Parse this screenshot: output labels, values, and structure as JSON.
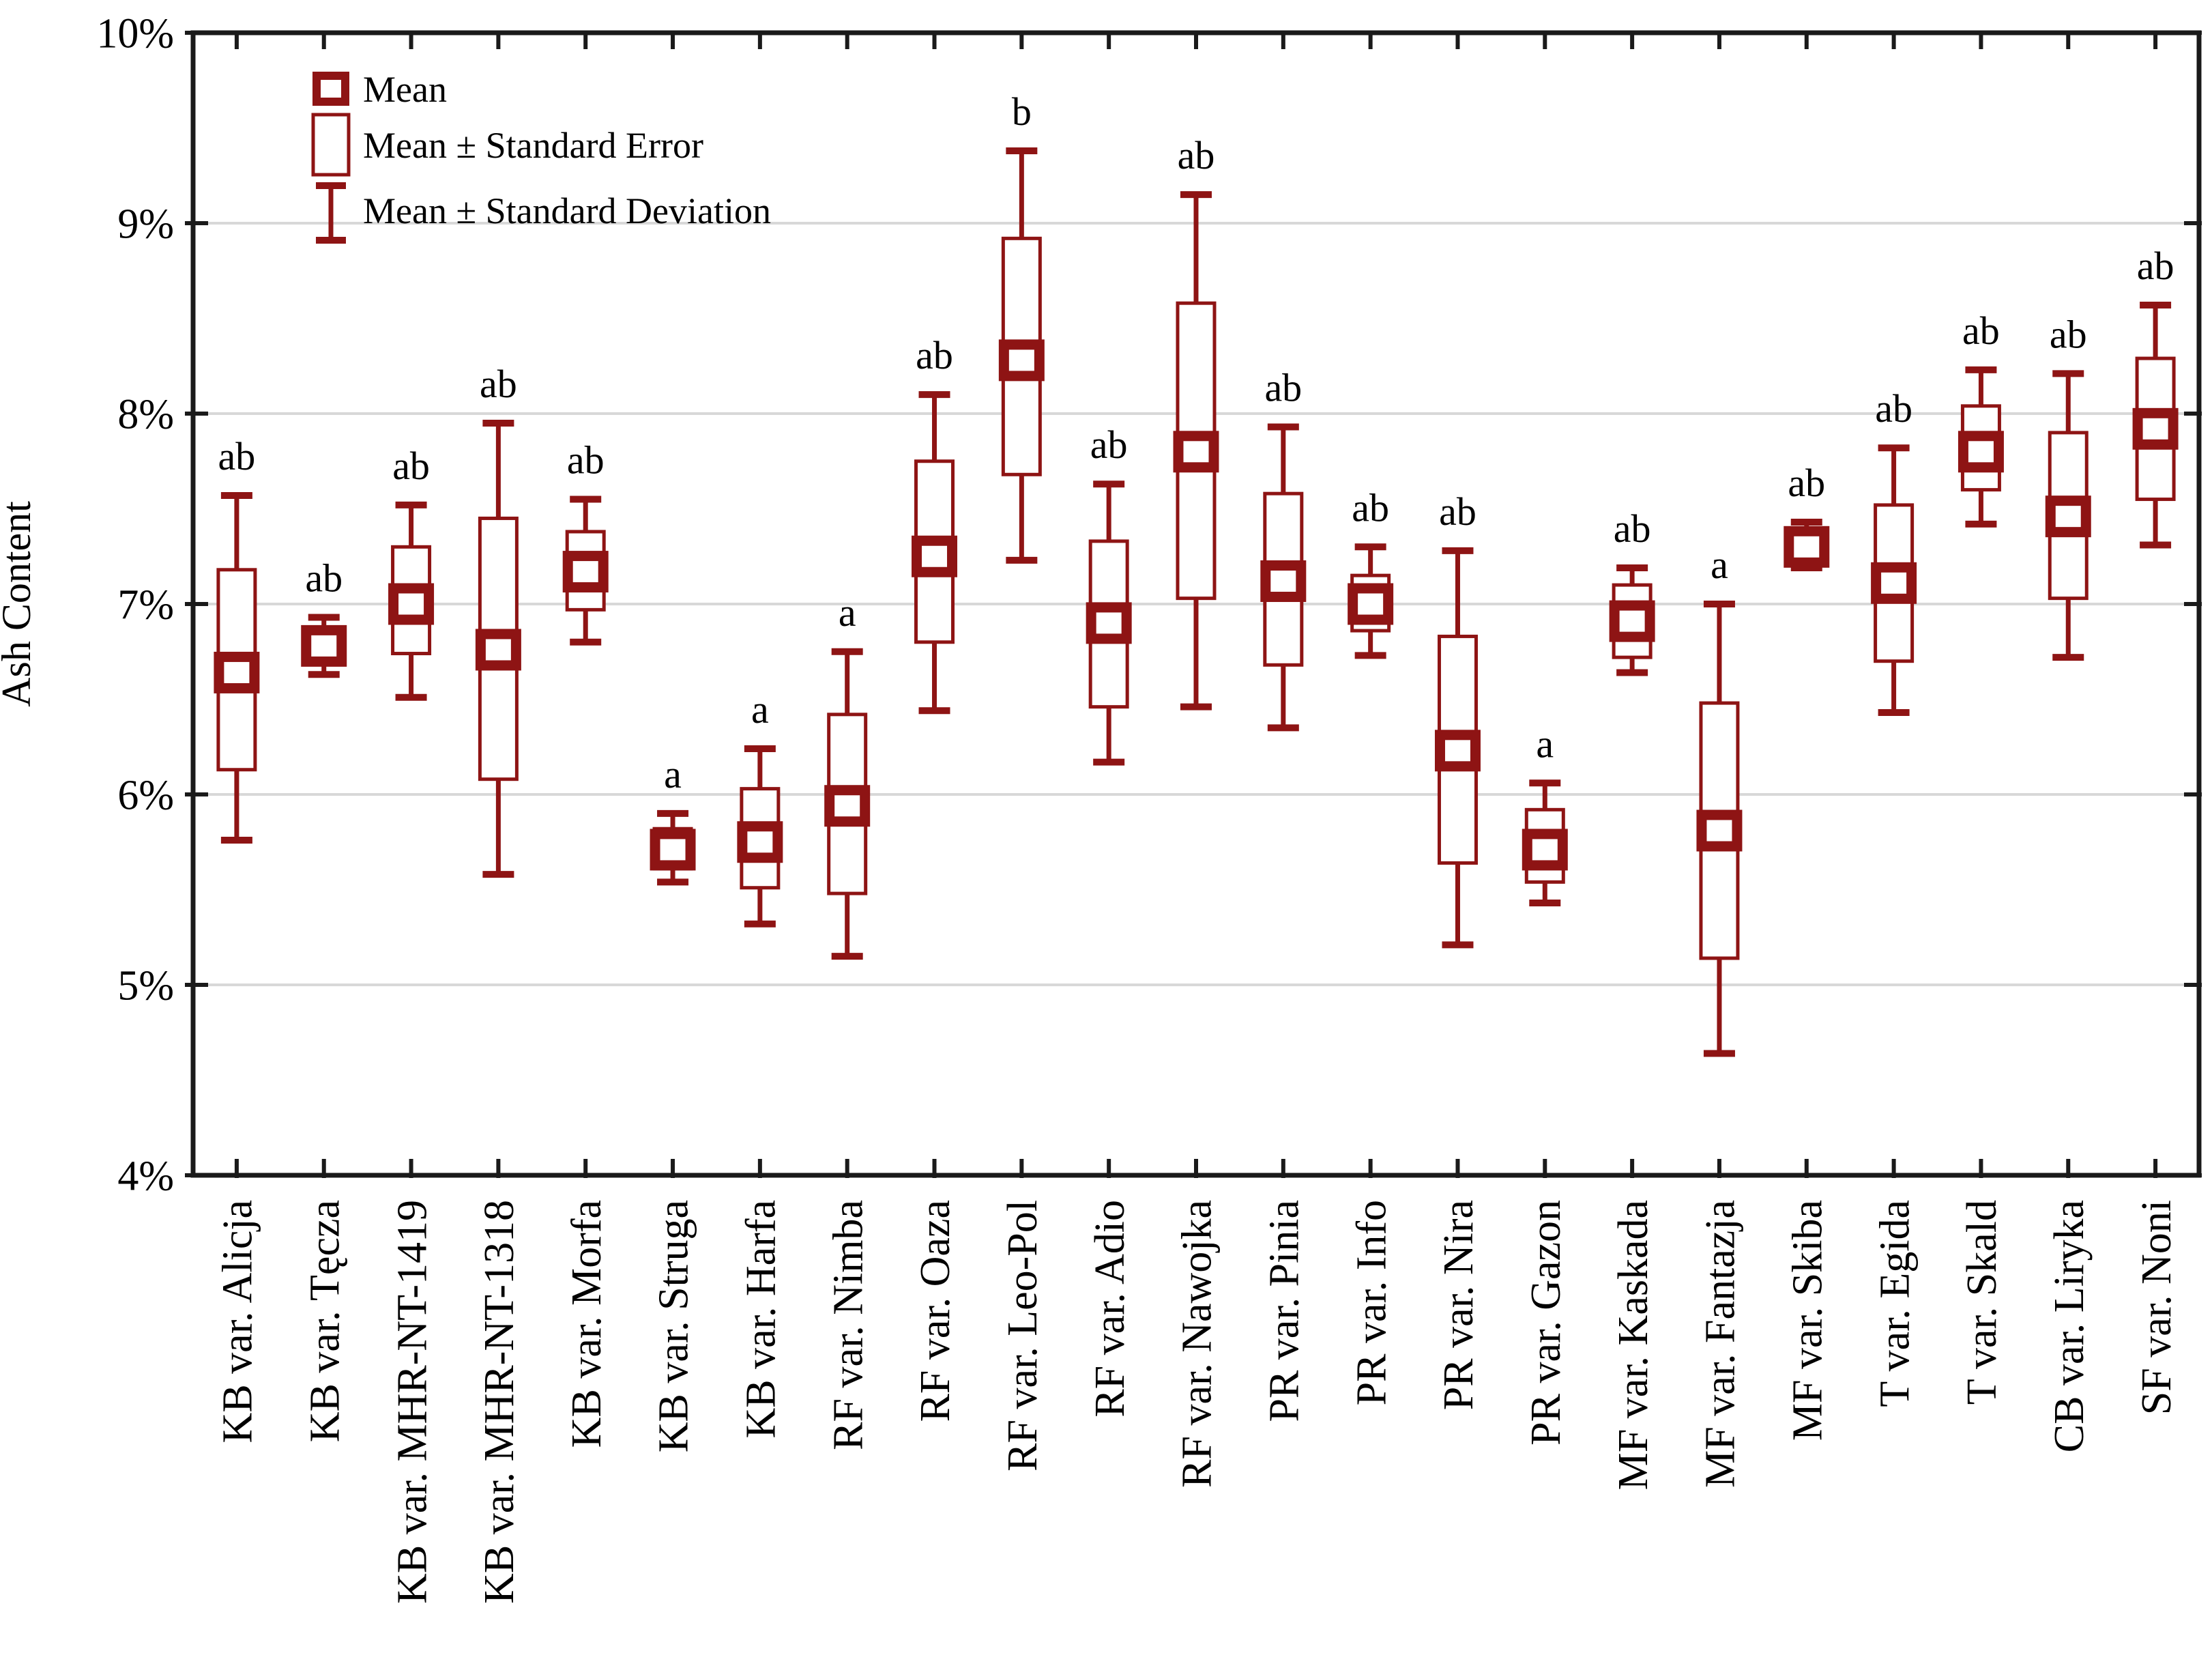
{
  "figure": {
    "background": "#ffffff",
    "accent_color": "#8e1414",
    "axis_color": "#1a1a1a",
    "grid_color": "#d8d8d8",
    "letter_color": "#111111",
    "ylabel": "Ash Content",
    "legend": [
      {
        "marker": "mean-square-icon",
        "label": "Mean"
      },
      {
        "marker": "se-box-icon",
        "label": "Mean ± Standard Error"
      },
      {
        "marker": "sd-whisker-icon",
        "label": "Mean ± Standard Deviation"
      }
    ]
  },
  "chart_data": {
    "type": "box",
    "title": "",
    "xlabel": "",
    "ylabel": "Ash Content",
    "ylim": [
      4,
      10
    ],
    "yticks": [
      {
        "value": 10,
        "label": "10%"
      },
      {
        "value": 9,
        "label": "9%"
      },
      {
        "value": 8,
        "label": "8%"
      },
      {
        "value": 7,
        "label": "7%"
      },
      {
        "value": 6,
        "label": "6%"
      },
      {
        "value": 5,
        "label": "5%"
      },
      {
        "value": 4,
        "label": "4%"
      }
    ],
    "grid": "horizontal",
    "legend_position": "top-left-inside",
    "box_definition": {
      "center": "Mean",
      "box": "Mean ± Standard Error",
      "whisker": "Mean ± Standard Deviation"
    },
    "points": [
      {
        "category": "KB var. Alicja",
        "letter": "ab",
        "mean": 6.64,
        "se": [
          6.13,
          7.18
        ],
        "sd": [
          5.76,
          7.57
        ]
      },
      {
        "category": "KB var. Tęcza",
        "letter": "ab",
        "mean": 6.78,
        "se": [
          6.69,
          6.87
        ],
        "sd": [
          6.63,
          6.93
        ]
      },
      {
        "category": "KB var. MHR-NT-1419",
        "letter": "ab",
        "mean": 7.0,
        "se": [
          6.74,
          7.3
        ],
        "sd": [
          6.51,
          7.52
        ]
      },
      {
        "category": "KB var. MHR-NT-1318",
        "letter": "ab",
        "mean": 6.76,
        "se": [
          6.08,
          7.45
        ],
        "sd": [
          5.58,
          7.95
        ]
      },
      {
        "category": "KB var. Morfa",
        "letter": "ab",
        "mean": 7.17,
        "se": [
          6.97,
          7.38
        ],
        "sd": [
          6.8,
          7.55
        ]
      },
      {
        "category": "KB var. Struga",
        "letter": "a",
        "mean": 5.71,
        "se": [
          5.61,
          5.82
        ],
        "sd": [
          5.54,
          5.9
        ]
      },
      {
        "category": "KB var. Harfa",
        "letter": "a",
        "mean": 5.75,
        "se": [
          5.51,
          6.03
        ],
        "sd": [
          5.32,
          6.24
        ]
      },
      {
        "category": "RF var. Nimba",
        "letter": "a",
        "mean": 5.94,
        "se": [
          5.48,
          6.42
        ],
        "sd": [
          5.15,
          6.75
        ]
      },
      {
        "category": "RF var. Oaza",
        "letter": "ab",
        "mean": 7.25,
        "se": [
          6.8,
          7.75
        ],
        "sd": [
          6.44,
          8.1
        ]
      },
      {
        "category": "RF var. Leo-Pol",
        "letter": "b",
        "mean": 8.28,
        "se": [
          7.68,
          8.92
        ],
        "sd": [
          7.23,
          9.38
        ]
      },
      {
        "category": "RF var. Adio",
        "letter": "ab",
        "mean": 6.9,
        "se": [
          6.46,
          7.33
        ],
        "sd": [
          6.17,
          7.63
        ]
      },
      {
        "category": "RF var. Nawojka",
        "letter": "ab",
        "mean": 7.8,
        "se": [
          7.03,
          8.58
        ],
        "sd": [
          6.46,
          9.15
        ]
      },
      {
        "category": "PR var. Pinia",
        "letter": "ab",
        "mean": 7.12,
        "se": [
          6.68,
          7.58
        ],
        "sd": [
          6.35,
          7.93
        ]
      },
      {
        "category": "PR var. Info",
        "letter": "ab",
        "mean": 7.0,
        "se": [
          6.86,
          7.15
        ],
        "sd": [
          6.73,
          7.3
        ]
      },
      {
        "category": "PR var. Nira",
        "letter": "ab",
        "mean": 6.23,
        "se": [
          5.64,
          6.83
        ],
        "sd": [
          5.21,
          7.28
        ]
      },
      {
        "category": "PR var. Gazon",
        "letter": "a",
        "mean": 5.71,
        "se": [
          5.54,
          5.92
        ],
        "sd": [
          5.43,
          6.06
        ]
      },
      {
        "category": "MF var. Kaskada",
        "letter": "ab",
        "mean": 6.91,
        "se": [
          6.72,
          7.1
        ],
        "sd": [
          6.64,
          7.19
        ]
      },
      {
        "category": "MF var. Fantazja",
        "letter": "a",
        "mean": 5.81,
        "se": [
          5.14,
          6.48
        ],
        "sd": [
          4.64,
          7.0
        ]
      },
      {
        "category": "MF var. Skiba",
        "letter": "ab",
        "mean": 7.3,
        "se": [
          7.23,
          7.38
        ],
        "sd": [
          7.19,
          7.43
        ]
      },
      {
        "category": "T var. Egida",
        "letter": "ab",
        "mean": 7.11,
        "se": [
          6.7,
          7.52
        ],
        "sd": [
          6.43,
          7.82
        ]
      },
      {
        "category": "T var. Skald",
        "letter": "ab",
        "mean": 7.8,
        "se": [
          7.6,
          8.04
        ],
        "sd": [
          7.42,
          8.23
        ]
      },
      {
        "category": "CB var. Liryka",
        "letter": "ab",
        "mean": 7.46,
        "se": [
          7.03,
          7.9
        ],
        "sd": [
          6.72,
          8.21
        ]
      },
      {
        "category": "SF var. Noni",
        "letter": "ab",
        "mean": 7.92,
        "se": [
          7.55,
          8.29
        ],
        "sd": [
          7.31,
          8.57
        ]
      }
    ]
  }
}
